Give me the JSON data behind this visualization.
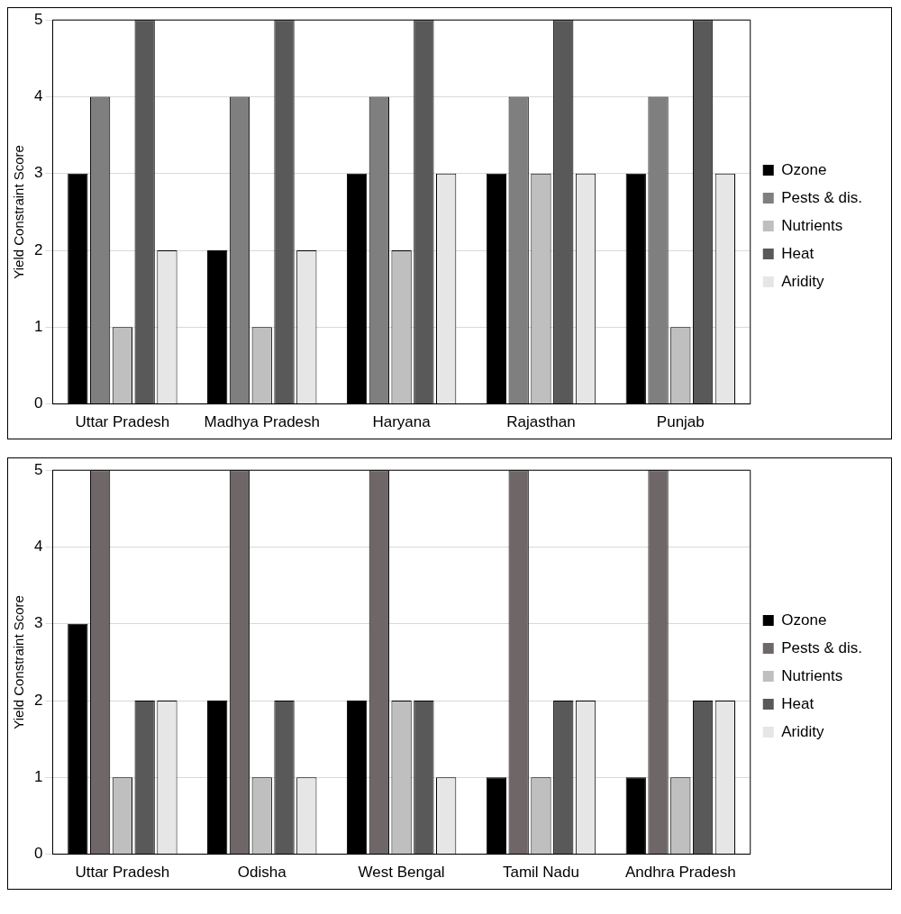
{
  "chart_data": [
    {
      "type": "bar",
      "ylabel": "Yield Constraint Score",
      "categories": [
        "Uttar Pradesh",
        "Madhya Pradesh",
        "Haryana",
        "Rajasthan",
        "Punjab"
      ],
      "series": [
        {
          "name": "Ozone",
          "color": "#000000",
          "values": [
            3,
            2,
            3,
            3,
            3
          ]
        },
        {
          "name": "Pests & dis.",
          "color": "#7f7f7f",
          "values": [
            4,
            4,
            4,
            4,
            4
          ]
        },
        {
          "name": "Nutrients",
          "color": "#bfbfbf",
          "values": [
            1,
            1,
            2,
            3,
            1
          ]
        },
        {
          "name": "Heat",
          "color": "#595959",
          "values": [
            5,
            5,
            5,
            5,
            5
          ]
        },
        {
          "name": "Aridity",
          "color": "#e6e6e6",
          "values": [
            2,
            2,
            3,
            3,
            3
          ]
        }
      ],
      "ylim": [
        0,
        5
      ],
      "yticks": [
        0,
        1,
        2,
        3,
        4,
        5
      ],
      "grid": "y",
      "legend": "right"
    },
    {
      "type": "bar",
      "ylabel": "Yield Constraint Score",
      "categories": [
        "Uttar Pradesh",
        "Odisha",
        "West Bengal",
        "Tamil Nadu",
        "Andhra Pradesh"
      ],
      "series": [
        {
          "name": "Ozone",
          "color": "#000000",
          "values": [
            3,
            2,
            2,
            1,
            1
          ]
        },
        {
          "name": "Pests & dis.",
          "color": "#6f6767",
          "values": [
            5,
            5,
            5,
            5,
            5
          ]
        },
        {
          "name": "Nutrients",
          "color": "#bfbfbf",
          "values": [
            1,
            1,
            2,
            1,
            1
          ]
        },
        {
          "name": "Heat",
          "color": "#595959",
          "values": [
            2,
            2,
            2,
            2,
            2
          ]
        },
        {
          "name": "Aridity",
          "color": "#e6e6e6",
          "values": [
            2,
            1,
            1,
            2,
            2
          ]
        }
      ],
      "ylim": [
        0,
        5
      ],
      "yticks": [
        0,
        1,
        2,
        3,
        4,
        5
      ],
      "grid": "y",
      "legend": "right"
    }
  ]
}
